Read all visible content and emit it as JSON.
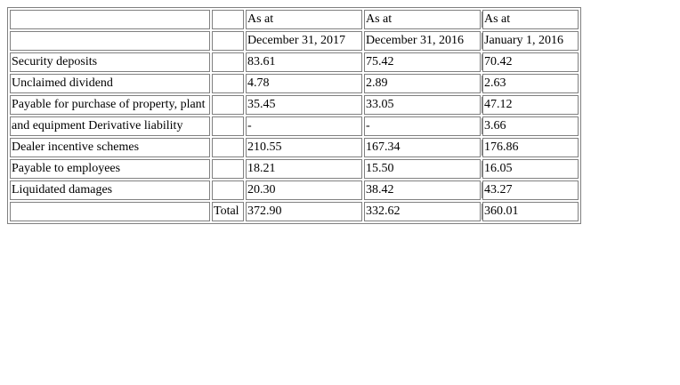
{
  "header_row1": {
    "col_2017": "As at",
    "col_2016": "As at",
    "col_jan2016": "As at"
  },
  "header_row2": {
    "col_2017": "December 31, 2017",
    "col_2016": "December 31, 2016",
    "col_jan2016": "January 1, 2016"
  },
  "rows": [
    {
      "label": "Security deposits",
      "mid": "",
      "v2017": "83.61",
      "v2016": "75.42",
      "vjan2016": "70.42"
    },
    {
      "label": "Unclaimed dividend",
      "mid": "",
      "v2017": "4.78",
      "v2016": "2.89",
      "vjan2016": "2.63"
    },
    {
      "label": "Payable for purchase of property, plant",
      "mid": "",
      "v2017": "35.45",
      "v2016": "33.05",
      "vjan2016": "47.12"
    },
    {
      "label": "and equipment Derivative liability",
      "mid": "",
      "v2017": "-",
      "v2016": "-",
      "vjan2016": "3.66"
    },
    {
      "label": "Dealer incentive schemes",
      "mid": "",
      "v2017": "210.55",
      "v2016": "167.34",
      "vjan2016": "176.86"
    },
    {
      "label": "Payable to employees",
      "mid": "",
      "v2017": "18.21",
      "v2016": "15.50",
      "vjan2016": "16.05"
    },
    {
      "label": "Liquidated damages",
      "mid": "",
      "v2017": "20.30",
      "v2016": "38.42",
      "vjan2016": "43.27"
    }
  ],
  "total_row": {
    "label": "",
    "mid": "Total",
    "v2017": "372.90",
    "v2016": "332.62",
    "vjan2016": "360.01"
  }
}
